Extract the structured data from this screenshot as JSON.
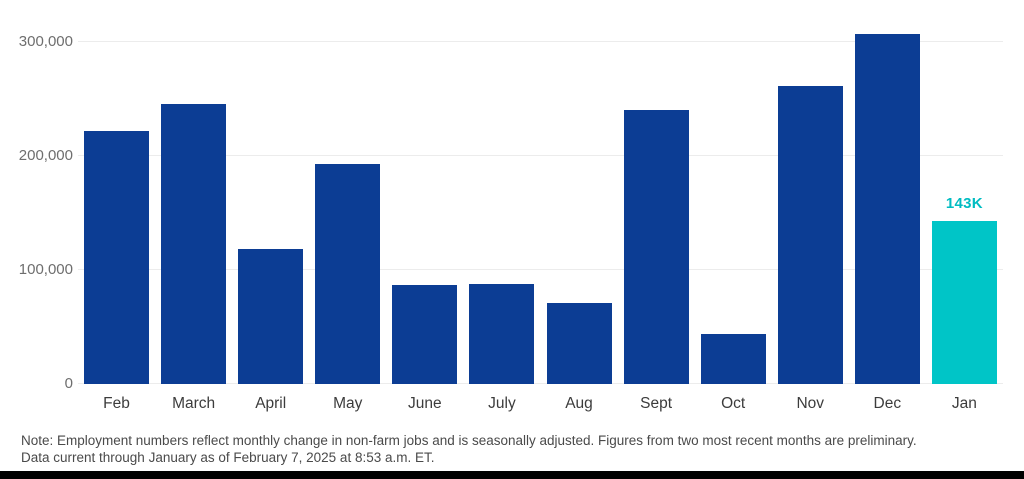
{
  "chart_data": {
    "type": "bar",
    "title": "",
    "xlabel": "",
    "ylabel": "",
    "categories": [
      "Feb",
      "March",
      "April",
      "May",
      "June",
      "July",
      "Aug",
      "Sept",
      "Oct",
      "Nov",
      "Dec",
      "Jan"
    ],
    "values": [
      222000,
      246000,
      118000,
      193000,
      87000,
      88000,
      71000,
      240000,
      44000,
      261000,
      307000,
      143000
    ],
    "ylim": [
      0,
      307000
    ],
    "yticks": [
      0,
      100000,
      200000,
      300000
    ],
    "ytick_labels": [
      "0",
      "100,000",
      "200,000",
      "300,000"
    ],
    "grid": true,
    "legend": "none",
    "bar_color": "#0C3D94",
    "highlight_index": 11,
    "highlight_color": "#00C5C7",
    "highlight_label": "143K",
    "highlight_label_color": "#00BCC2"
  },
  "note": {
    "line1": "Note: Employment numbers reflect monthly change in non-farm jobs and is seasonally adjusted. Figures from two most recent months are preliminary.",
    "line2": "Data current through January as of February 7, 2025 at 8:53 a.m. ET."
  },
  "colors": {
    "gridline": "#ececec",
    "y_label": "#6e6e6e",
    "x_label": "#3c3c3c",
    "note_text": "#4a4a4a",
    "bottom_strip": "#000000"
  }
}
